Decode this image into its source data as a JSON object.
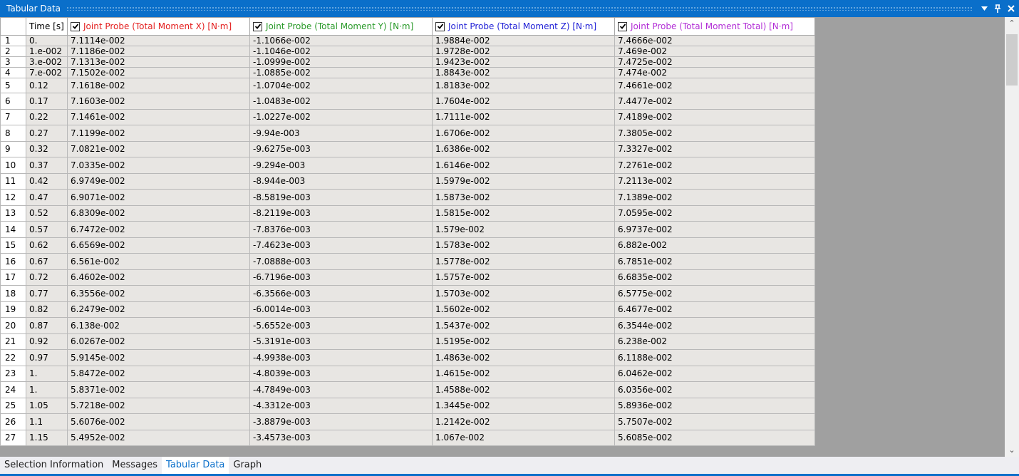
{
  "panel": {
    "title": "Tabular Data"
  },
  "colors": {
    "accent": "#0a6fca",
    "x": "#e31e1e",
    "y": "#2a9a2a",
    "z": "#1f1fd6",
    "total": "#b22ed6"
  },
  "columns": [
    {
      "label": "Time [s]"
    },
    {
      "label": "Joint Probe (Total Moment X) [N·m]",
      "checked": true,
      "color": "#e31e1e"
    },
    {
      "label": "Joint Probe (Total Moment Y) [N·m]",
      "checked": true,
      "color": "#2a9a2a"
    },
    {
      "label": "Joint Probe (Total Moment Z) [N·m]",
      "checked": true,
      "color": "#1f1fd6"
    },
    {
      "label": "Joint Probe (Total Moment Total) [N·m]",
      "checked": true,
      "color": "#b22ed6"
    }
  ],
  "rows": [
    [
      "1",
      "0.",
      "7.1114e-002",
      "-1.1066e-002",
      "1.9884e-002",
      "7.4666e-002"
    ],
    [
      "2",
      "1.e-002",
      "7.1186e-002",
      "-1.1046e-002",
      "1.9728e-002",
      "7.469e-002"
    ],
    [
      "3",
      "3.e-002",
      "7.1313e-002",
      "-1.0999e-002",
      "1.9423e-002",
      "7.4725e-002"
    ],
    [
      "4",
      "7.e-002",
      "7.1502e-002",
      "-1.0885e-002",
      "1.8843e-002",
      "7.474e-002"
    ],
    [
      "5",
      "0.12",
      "7.1618e-002",
      "-1.0704e-002",
      "1.8183e-002",
      "7.4661e-002"
    ],
    [
      "6",
      "0.17",
      "7.1603e-002",
      "-1.0483e-002",
      "1.7604e-002",
      "7.4477e-002"
    ],
    [
      "7",
      "0.22",
      "7.1461e-002",
      "-1.0227e-002",
      "1.7111e-002",
      "7.4189e-002"
    ],
    [
      "8",
      "0.27",
      "7.1199e-002",
      "-9.94e-003",
      "1.6706e-002",
      "7.3805e-002"
    ],
    [
      "9",
      "0.32",
      "7.0821e-002",
      "-9.6275e-003",
      "1.6386e-002",
      "7.3327e-002"
    ],
    [
      "10",
      "0.37",
      "7.0335e-002",
      "-9.294e-003",
      "1.6146e-002",
      "7.2761e-002"
    ],
    [
      "11",
      "0.42",
      "6.9749e-002",
      "-8.944e-003",
      "1.5979e-002",
      "7.2113e-002"
    ],
    [
      "12",
      "0.47",
      "6.9071e-002",
      "-8.5819e-003",
      "1.5873e-002",
      "7.1389e-002"
    ],
    [
      "13",
      "0.52",
      "6.8309e-002",
      "-8.2119e-003",
      "1.5815e-002",
      "7.0595e-002"
    ],
    [
      "14",
      "0.57",
      "6.7472e-002",
      "-7.8376e-003",
      "1.579e-002",
      "6.9737e-002"
    ],
    [
      "15",
      "0.62",
      "6.6569e-002",
      "-7.4623e-003",
      "1.5783e-002",
      "6.882e-002"
    ],
    [
      "16",
      "0.67",
      "6.561e-002",
      "-7.0888e-003",
      "1.5778e-002",
      "6.7851e-002"
    ],
    [
      "17",
      "0.72",
      "6.4602e-002",
      "-6.7196e-003",
      "1.5757e-002",
      "6.6835e-002"
    ],
    [
      "18",
      "0.77",
      "6.3556e-002",
      "-6.3566e-003",
      "1.5703e-002",
      "6.5775e-002"
    ],
    [
      "19",
      "0.82",
      "6.2479e-002",
      "-6.0014e-003",
      "1.5602e-002",
      "6.4677e-002"
    ],
    [
      "20",
      "0.87",
      "6.138e-002",
      "-5.6552e-003",
      "1.5437e-002",
      "6.3544e-002"
    ],
    [
      "21",
      "0.92",
      "6.0267e-002",
      "-5.3191e-003",
      "1.5195e-002",
      "6.238e-002"
    ],
    [
      "22",
      "0.97",
      "5.9145e-002",
      "-4.9938e-003",
      "1.4863e-002",
      "6.1188e-002"
    ],
    [
      "23",
      "1.",
      "5.8472e-002",
      "-4.8039e-003",
      "1.4615e-002",
      "6.0462e-002"
    ],
    [
      "24",
      "1.",
      "5.8371e-002",
      "-4.7849e-003",
      "1.4588e-002",
      "6.0356e-002"
    ],
    [
      "25",
      "1.05",
      "5.7218e-002",
      "-4.3312e-003",
      "1.3445e-002",
      "5.8936e-002"
    ],
    [
      "26",
      "1.1",
      "5.6076e-002",
      "-3.8879e-003",
      "1.2142e-002",
      "5.7507e-002"
    ],
    [
      "27",
      "1.15",
      "5.4952e-002",
      "-3.4573e-003",
      "1.067e-002",
      "5.6085e-002"
    ]
  ],
  "tabs": [
    {
      "label": "Selection Information",
      "active": false
    },
    {
      "label": "Messages",
      "active": false
    },
    {
      "label": "Tabular Data",
      "active": true
    },
    {
      "label": "Graph",
      "active": false
    }
  ]
}
